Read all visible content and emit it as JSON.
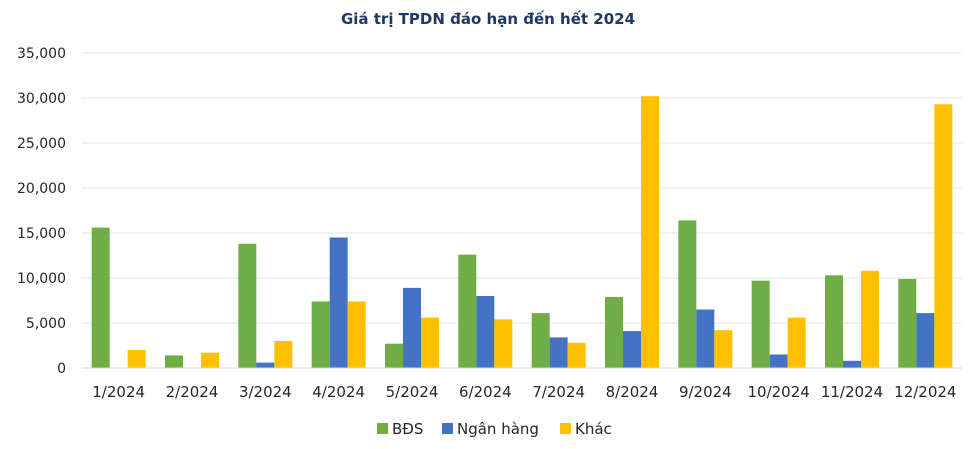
{
  "chart_data": {
    "type": "bar",
    "title": "Giá trị TPDN đáo hạn đến hết 2024",
    "xlabel": "",
    "ylabel": "",
    "categories": [
      "1/2024",
      "2/2024",
      "3/2024",
      "4/2024",
      "5/2024",
      "6/2024",
      "7/2024",
      "8/2024",
      "9/2024",
      "10/2024",
      "11/2024",
      "12/2024"
    ],
    "series": [
      {
        "name": "BĐS",
        "color": "#70ad47",
        "values": [
          15600,
          1400,
          13800,
          7400,
          2700,
          12600,
          6100,
          7900,
          16400,
          9700,
          10300,
          9900
        ]
      },
      {
        "name": "Ngân hàng",
        "color": "#4472c4",
        "values": [
          0,
          0,
          600,
          14500,
          8900,
          8000,
          3400,
          4100,
          6500,
          1500,
          800,
          6100
        ]
      },
      {
        "name": "Khác",
        "color": "#ffc000",
        "values": [
          2000,
          1700,
          3000,
          7400,
          5600,
          5400,
          2800,
          30200,
          4200,
          5600,
          10800,
          29300
        ]
      }
    ],
    "ylim": [
      0,
      35000
    ],
    "yticks": [
      "0",
      "5,000",
      "10,000",
      "15,000",
      "20,000",
      "25,000",
      "30,000",
      "35,000"
    ],
    "grid": true,
    "legend_position": "bottom"
  }
}
